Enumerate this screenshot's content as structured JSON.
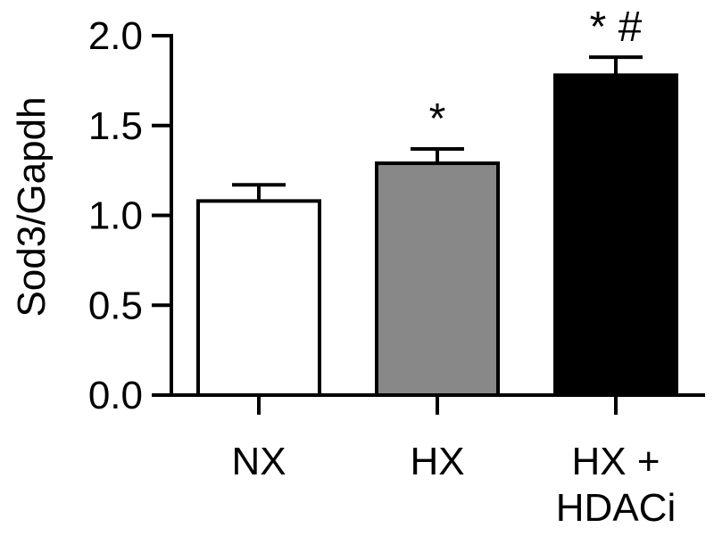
{
  "chart_data": {
    "type": "bar",
    "categories": [
      "NX",
      "HX",
      "HX + HDACi"
    ],
    "category_lines": [
      [
        "NX"
      ],
      [
        "HX"
      ],
      [
        "HX +",
        "HDACi"
      ]
    ],
    "values": [
      1.08,
      1.29,
      1.78
    ],
    "errors": [
      0.09,
      0.08,
      0.1
    ],
    "annotations": [
      "",
      "*",
      "* #"
    ],
    "fills": [
      "#ffffff",
      "#888888",
      "#000000"
    ],
    "ylabel": "Sod3/Gapdh",
    "xlabel": "",
    "ylim": [
      0,
      2.0
    ],
    "yticks": [
      "0.0",
      "0.5",
      "1.0",
      "1.5",
      "2.0"
    ],
    "ytick_values": [
      0,
      0.5,
      1.0,
      1.5,
      2.0
    ]
  }
}
